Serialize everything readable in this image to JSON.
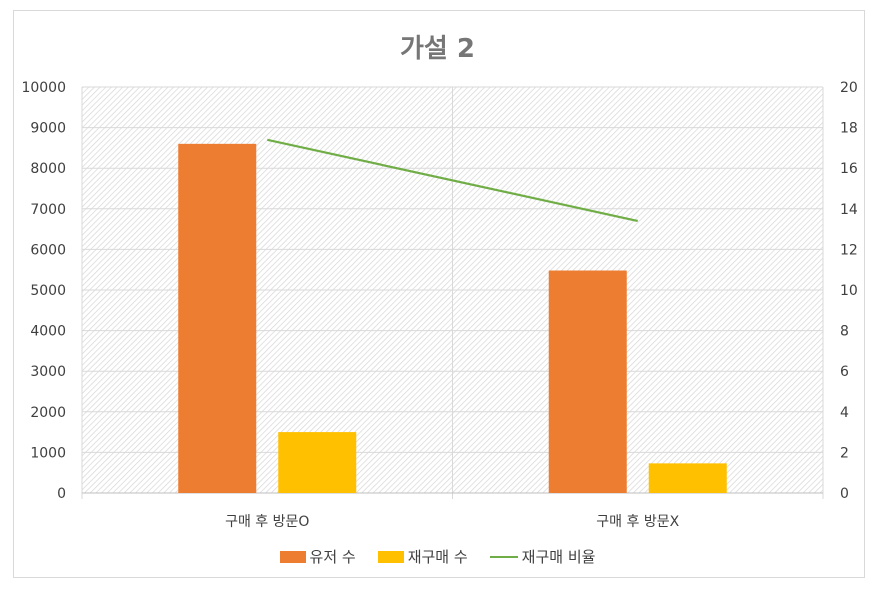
{
  "chart_data": {
    "type": "bar",
    "title": "가설 2",
    "categories": [
      "구매 후 방문O",
      "구매 후 방문X"
    ],
    "series": [
      {
        "name": "유저 수",
        "axis": "left",
        "kind": "bar",
        "color": "#ED7D31",
        "values": [
          8600,
          5480
        ]
      },
      {
        "name": "재구매 수",
        "axis": "left",
        "kind": "bar",
        "color": "#FFC000",
        "values": [
          1500,
          730
        ]
      },
      {
        "name": "재구매 비율",
        "axis": "right",
        "kind": "line",
        "color": "#70AD47",
        "values": [
          17.4,
          13.4
        ]
      }
    ],
    "ylim": [
      0,
      10000
    ],
    "y2lim": [
      0,
      20
    ],
    "yticks": [
      "0",
      "1000",
      "2000",
      "3000",
      "4000",
      "5000",
      "6000",
      "7000",
      "8000",
      "9000",
      "10000"
    ],
    "y2ticks": [
      "0",
      "2",
      "4",
      "6",
      "8",
      "10",
      "12",
      "14",
      "16",
      "18",
      "20"
    ],
    "grid": true,
    "legend_position": "bottom"
  }
}
